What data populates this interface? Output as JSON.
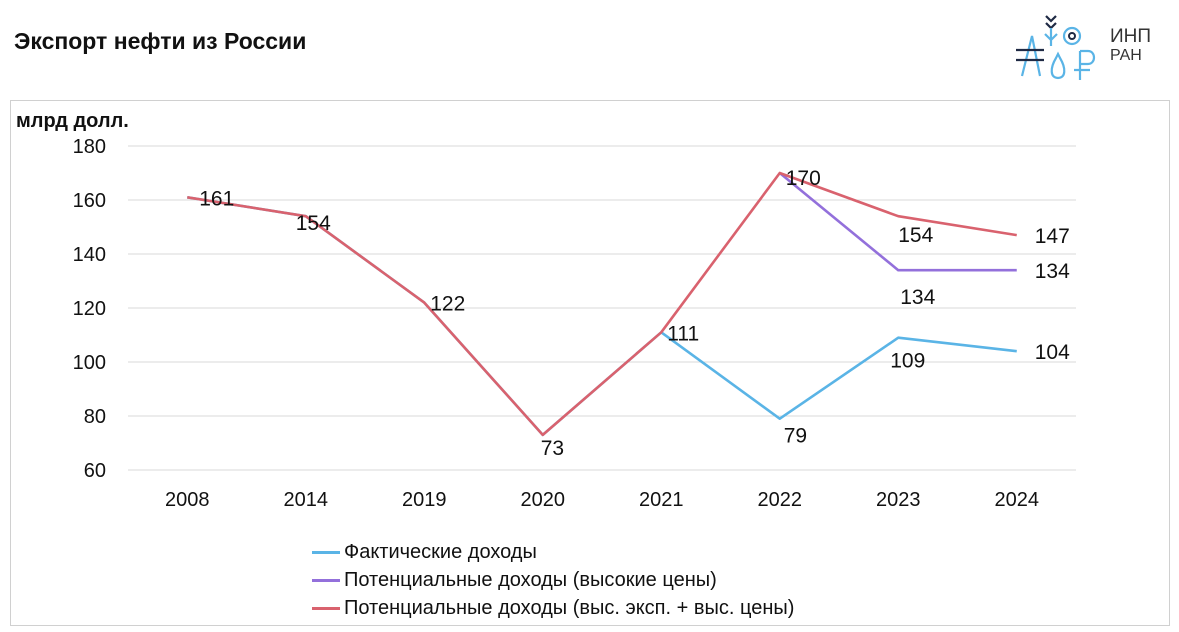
{
  "title": "Экспорт нефти из России",
  "logo": {
    "text_line1": "ИНП",
    "text_line2": "РАН"
  },
  "chart_data": {
    "type": "line",
    "title": "Экспорт нефти из России",
    "ylabel": "млрд долл.",
    "xlabel": "",
    "categories": [
      "2008",
      "2014",
      "2019",
      "2020",
      "2021",
      "2022",
      "2023",
      "2024"
    ],
    "ylim": [
      60,
      180
    ],
    "yticks": [
      60,
      80,
      100,
      120,
      140,
      160,
      180
    ],
    "grid": true,
    "legend_position": "bottom",
    "series": [
      {
        "name": "Фактические доходы",
        "color": "#5ab4e6",
        "values": [
          161,
          154,
          122,
          73,
          111,
          79,
          109,
          104
        ],
        "labels": [
          null,
          null,
          null,
          null,
          null,
          "79",
          "109",
          "104"
        ]
      },
      {
        "name": "Потенциальные доходы  (высокие цены)",
        "color": "#9370db",
        "values": [
          null,
          null,
          null,
          null,
          null,
          170,
          134,
          134
        ],
        "labels": [
          null,
          null,
          null,
          null,
          null,
          null,
          "134",
          "134"
        ]
      },
      {
        "name": "Потенциальные доходы (выс. эксп. + выс. цены)",
        "color": "#d9626e",
        "values": [
          161,
          154,
          122,
          73,
          111,
          170,
          154,
          147
        ],
        "labels": [
          "161",
          "154",
          "122",
          "73",
          "111",
          "170",
          "154",
          "147"
        ]
      }
    ]
  }
}
